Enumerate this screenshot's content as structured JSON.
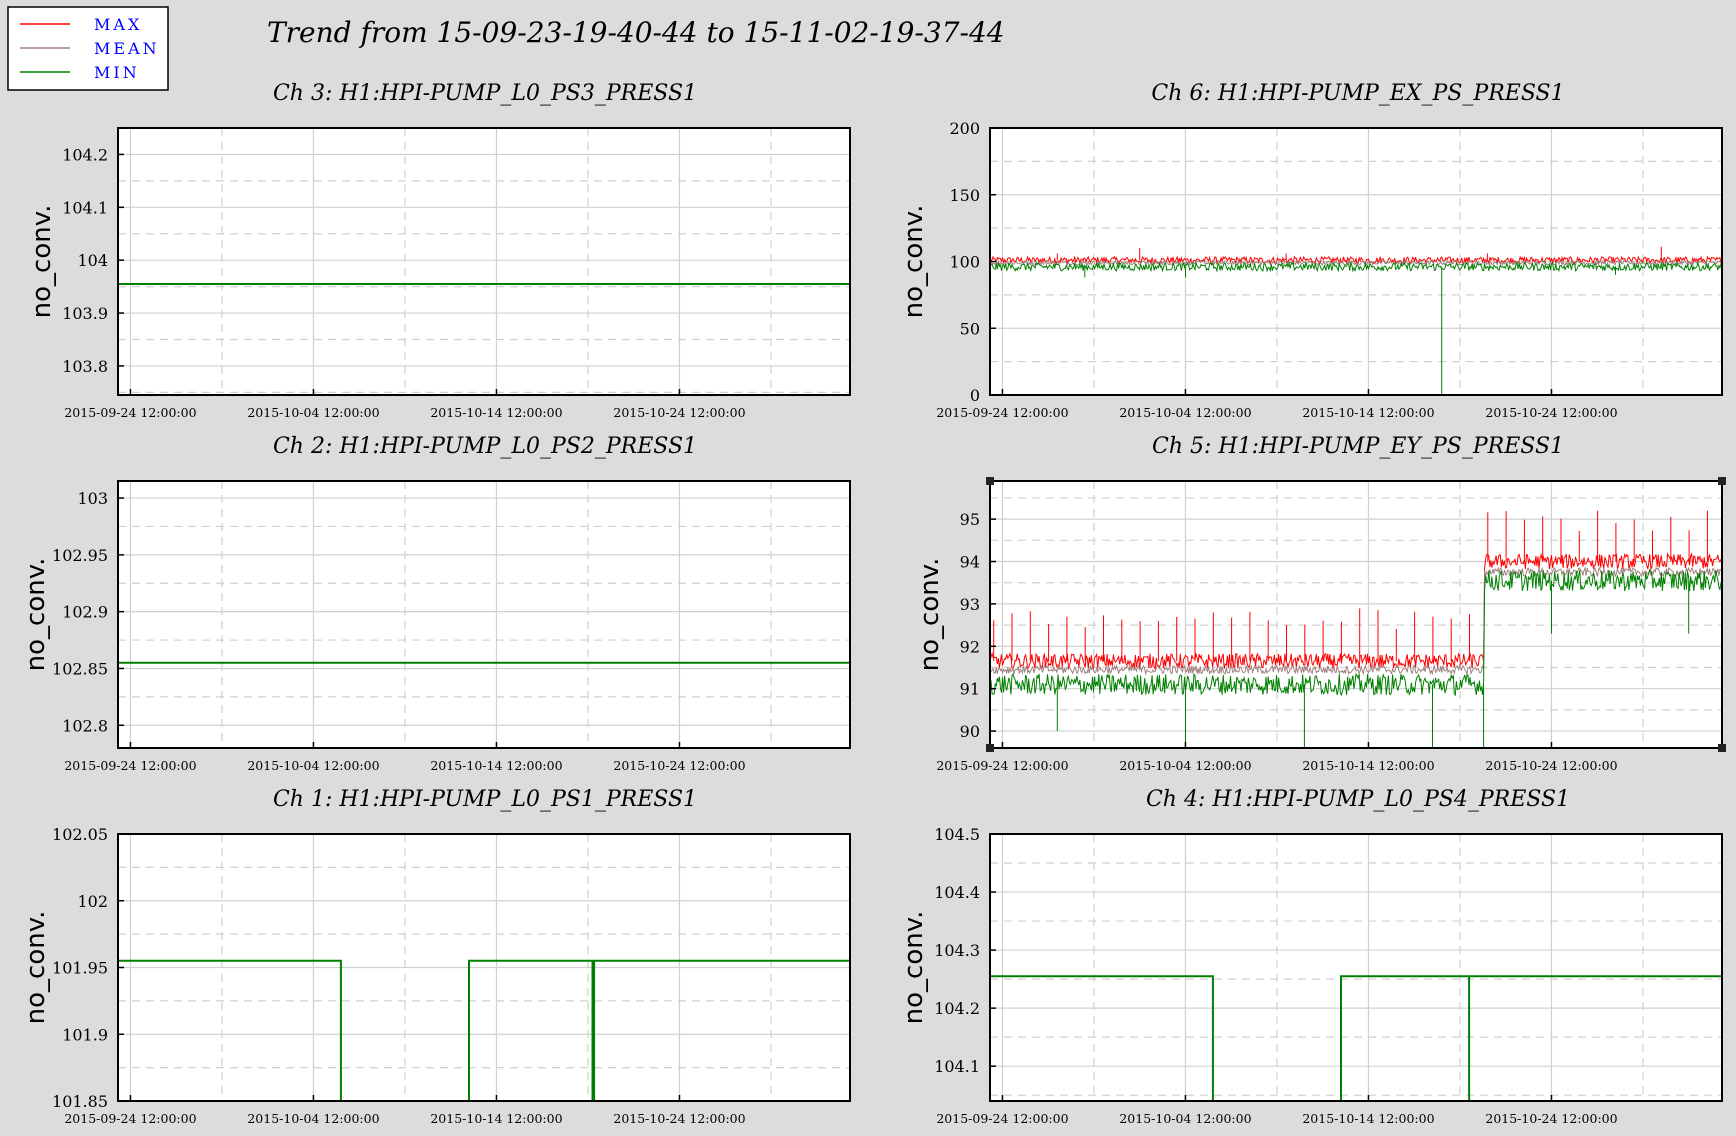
{
  "header": {
    "title": "Trend from 15-09-23-19-40-44 to 15-11-02-19-37-44"
  },
  "legend": [
    {
      "label": "MAX",
      "color": "#ff0000"
    },
    {
      "label": "MEAN",
      "color": "#a08080"
    },
    {
      "label": "MIN",
      "color": "#008000"
    }
  ],
  "colors": {
    "background": "#dcdcdc",
    "plot_bg": "#ffffff",
    "max": "#ff0000",
    "mean": "#a08080",
    "min": "#008000",
    "legend_text": "#0000ff"
  },
  "chart_data": [
    {
      "id": "ch3",
      "type": "line",
      "title": "Ch 3: H1:HPI-PUMP_L0_PS3_PRESS1",
      "ylabel": "no_conv.",
      "x_ticks": [
        "2015-09-24 12:00:00",
        "2015-10-04 12:00:00",
        "2015-10-14 12:00:00",
        "2015-10-24 12:00:00"
      ],
      "xlim": [
        "2015-09-23 19:40:44",
        "2015-11-02 19:37:44"
      ],
      "ylim": [
        103.745,
        104.25
      ],
      "y_ticks": [
        103.8,
        103.9,
        104,
        104.1,
        104.2
      ],
      "y_tick_labels": [
        "103.8",
        "103.9",
        "104",
        "104.1",
        "104.2"
      ],
      "series": [
        {
          "name": "MIN",
          "points": [
            [
              "2015-09-23 19:40:44",
              103.955
            ],
            [
              "2015-11-02 19:37:44",
              103.955
            ]
          ]
        }
      ]
    },
    {
      "id": "ch6",
      "type": "line",
      "title": "Ch 6: H1:HPI-PUMP_EX_PS_PRESS1",
      "ylabel": "no_conv.",
      "x_ticks": [
        "2015-09-24 12:00:00",
        "2015-10-04 12:00:00",
        "2015-10-14 12:00:00",
        "2015-10-24 12:00:00"
      ],
      "xlim": [
        "2015-09-23 19:40:44",
        "2015-11-02 19:37:44"
      ],
      "ylim": [
        0,
        200
      ],
      "y_ticks": [
        0,
        50,
        100,
        150,
        200
      ],
      "y_tick_labels": [
        "0",
        "50",
        "100",
        "150",
        "200"
      ],
      "series": [
        {
          "name": "MAX",
          "noisy": true,
          "level": 101,
          "spread": 2.5,
          "spikes": [
            [
              "2015-09-27 12:00:00",
              106
            ],
            [
              "2015-10-02 00:00:00",
              110
            ],
            [
              "2015-10-10 00:00:00",
              106
            ],
            [
              "2015-10-21 00:00:00",
              106
            ],
            [
              "2015-10-30 12:00:00",
              111
            ]
          ]
        },
        {
          "name": "MEAN",
          "noisy": true,
          "level": 99,
          "spread": 1.5,
          "spikes": []
        },
        {
          "name": "MIN",
          "noisy": true,
          "level": 96,
          "spread": 3,
          "spikes": [
            [
              "2015-09-29 00:00:00",
              88
            ],
            [
              "2015-10-04 12:00:00",
              88
            ],
            [
              "2015-10-18 12:00:00",
              0
            ],
            [
              "2015-10-28 00:00:00",
              90
            ]
          ]
        }
      ]
    },
    {
      "id": "ch2",
      "type": "line",
      "title": "Ch 2: H1:HPI-PUMP_L0_PS2_PRESS1",
      "ylabel": "no_conv.",
      "x_ticks": [
        "2015-09-24 12:00:00",
        "2015-10-04 12:00:00",
        "2015-10-14 12:00:00",
        "2015-10-24 12:00:00"
      ],
      "xlim": [
        "2015-09-23 19:40:44",
        "2015-11-02 19:37:44"
      ],
      "ylim": [
        102.78,
        103.015
      ],
      "y_ticks": [
        102.8,
        102.85,
        102.9,
        102.95,
        103
      ],
      "y_tick_labels": [
        "102.8",
        "102.85",
        "102.9",
        "102.95",
        "103"
      ],
      "series": [
        {
          "name": "MIN",
          "points": [
            [
              "2015-09-23 19:40:44",
              102.855
            ],
            [
              "2015-11-02 19:37:44",
              102.855
            ]
          ]
        }
      ]
    },
    {
      "id": "ch5",
      "type": "line",
      "title": "Ch 5: H1:HPI-PUMP_EY_PS_PRESS1",
      "ylabel": "no_conv.",
      "x_ticks": [
        "2015-09-24 12:00:00",
        "2015-10-04 12:00:00",
        "2015-10-14 12:00:00",
        "2015-10-24 12:00:00"
      ],
      "xlim": [
        "2015-09-23 19:40:44",
        "2015-11-02 19:37:44"
      ],
      "ylim": [
        89.6,
        95.9
      ],
      "y_ticks": [
        90,
        91,
        92,
        93,
        94,
        95
      ],
      "y_tick_labels": [
        "90",
        "91",
        "92",
        "93",
        "94",
        "95"
      ],
      "step_date": "2015-10-20 19:00:00",
      "series": [
        {
          "name": "MAX",
          "noisy": true,
          "level_before": 91.65,
          "level_after": 94.0,
          "spread": 0.18,
          "periodic_spikes_before": 92.9,
          "periodic_spikes_after": 95.2
        },
        {
          "name": "MEAN",
          "noisy": true,
          "level_before": 91.45,
          "level_after": 93.75,
          "spread": 0.1
        },
        {
          "name": "MIN",
          "noisy": true,
          "level_before": 91.1,
          "level_after": 93.55,
          "spread": 0.25,
          "dips": [
            [
              "2015-09-27 12:00:00",
              90.0
            ],
            [
              "2015-10-04 12:00:00",
              89.6
            ],
            [
              "2015-10-11 00:00:00",
              89.6
            ],
            [
              "2015-10-18 00:00:00",
              89.6
            ],
            [
              "2015-10-20 19:00:00",
              89.6
            ],
            [
              "2015-10-24 12:00:00",
              92.3
            ],
            [
              "2015-11-01 00:00:00",
              92.3
            ]
          ]
        }
      ]
    },
    {
      "id": "ch1",
      "type": "line",
      "title": "Ch 1: H1:HPI-PUMP_L0_PS1_PRESS1",
      "ylabel": "no_conv.",
      "x_ticks": [
        "2015-09-24 12:00:00",
        "2015-10-04 12:00:00",
        "2015-10-14 12:00:00",
        "2015-10-24 12:00:00"
      ],
      "xlim": [
        "2015-09-23 19:40:44",
        "2015-11-02 19:37:44"
      ],
      "ylim": [
        101.85,
        102.05
      ],
      "y_ticks": [
        101.85,
        101.9,
        101.95,
        102,
        102.05
      ],
      "y_tick_labels": [
        "101.85",
        "101.9",
        "101.95",
        "102",
        "102.05"
      ],
      "series": [
        {
          "name": "MIN",
          "points": [
            [
              "2015-09-23 19:40:44",
              101.955
            ],
            [
              "2015-10-06 00:00:00",
              101.955
            ],
            [
              "2015-10-06 00:00:00",
              101.85
            ],
            [
              "2015-10-13 00:00:00",
              101.85
            ],
            [
              "2015-10-13 00:00:00",
              101.955
            ],
            [
              "2015-10-19 18:00:00",
              101.955
            ],
            [
              "2015-10-19 18:00:00",
              101.85
            ],
            [
              "2015-10-19 20:00:00",
              101.85
            ],
            [
              "2015-10-19 20:00:00",
              101.955
            ],
            [
              "2015-11-02 19:37:44",
              101.955
            ]
          ]
        }
      ]
    },
    {
      "id": "ch4",
      "type": "line",
      "title": "Ch 4: H1:HPI-PUMP_L0_PS4_PRESS1",
      "ylabel": "no_conv.",
      "x_ticks": [
        "2015-09-24 12:00:00",
        "2015-10-04 12:00:00",
        "2015-10-14 12:00:00",
        "2015-10-24 12:00:00"
      ],
      "xlim": [
        "2015-09-23 19:40:44",
        "2015-11-02 19:37:44"
      ],
      "ylim": [
        104.04,
        104.5
      ],
      "y_ticks": [
        104.1,
        104.2,
        104.3,
        104.4,
        104.5
      ],
      "y_tick_labels": [
        "104.1",
        "104.2",
        "104.3",
        "104.4",
        "104.5"
      ],
      "series": [
        {
          "name": "MIN",
          "points": [
            [
              "2015-09-23 19:40:44",
              104.255
            ],
            [
              "2015-10-06 00:00:00",
              104.255
            ],
            [
              "2015-10-06 00:00:00",
              104.04
            ],
            [
              "2015-10-13 00:00:00",
              104.04
            ],
            [
              "2015-10-13 00:00:00",
              104.255
            ],
            [
              "2015-10-20 00:00:00",
              104.255
            ],
            [
              "2015-10-20 00:00:00",
              104.04
            ],
            [
              "2015-10-20 00:00:00",
              104.255
            ],
            [
              "2015-11-02 19:37:44",
              104.255
            ]
          ]
        }
      ]
    }
  ]
}
